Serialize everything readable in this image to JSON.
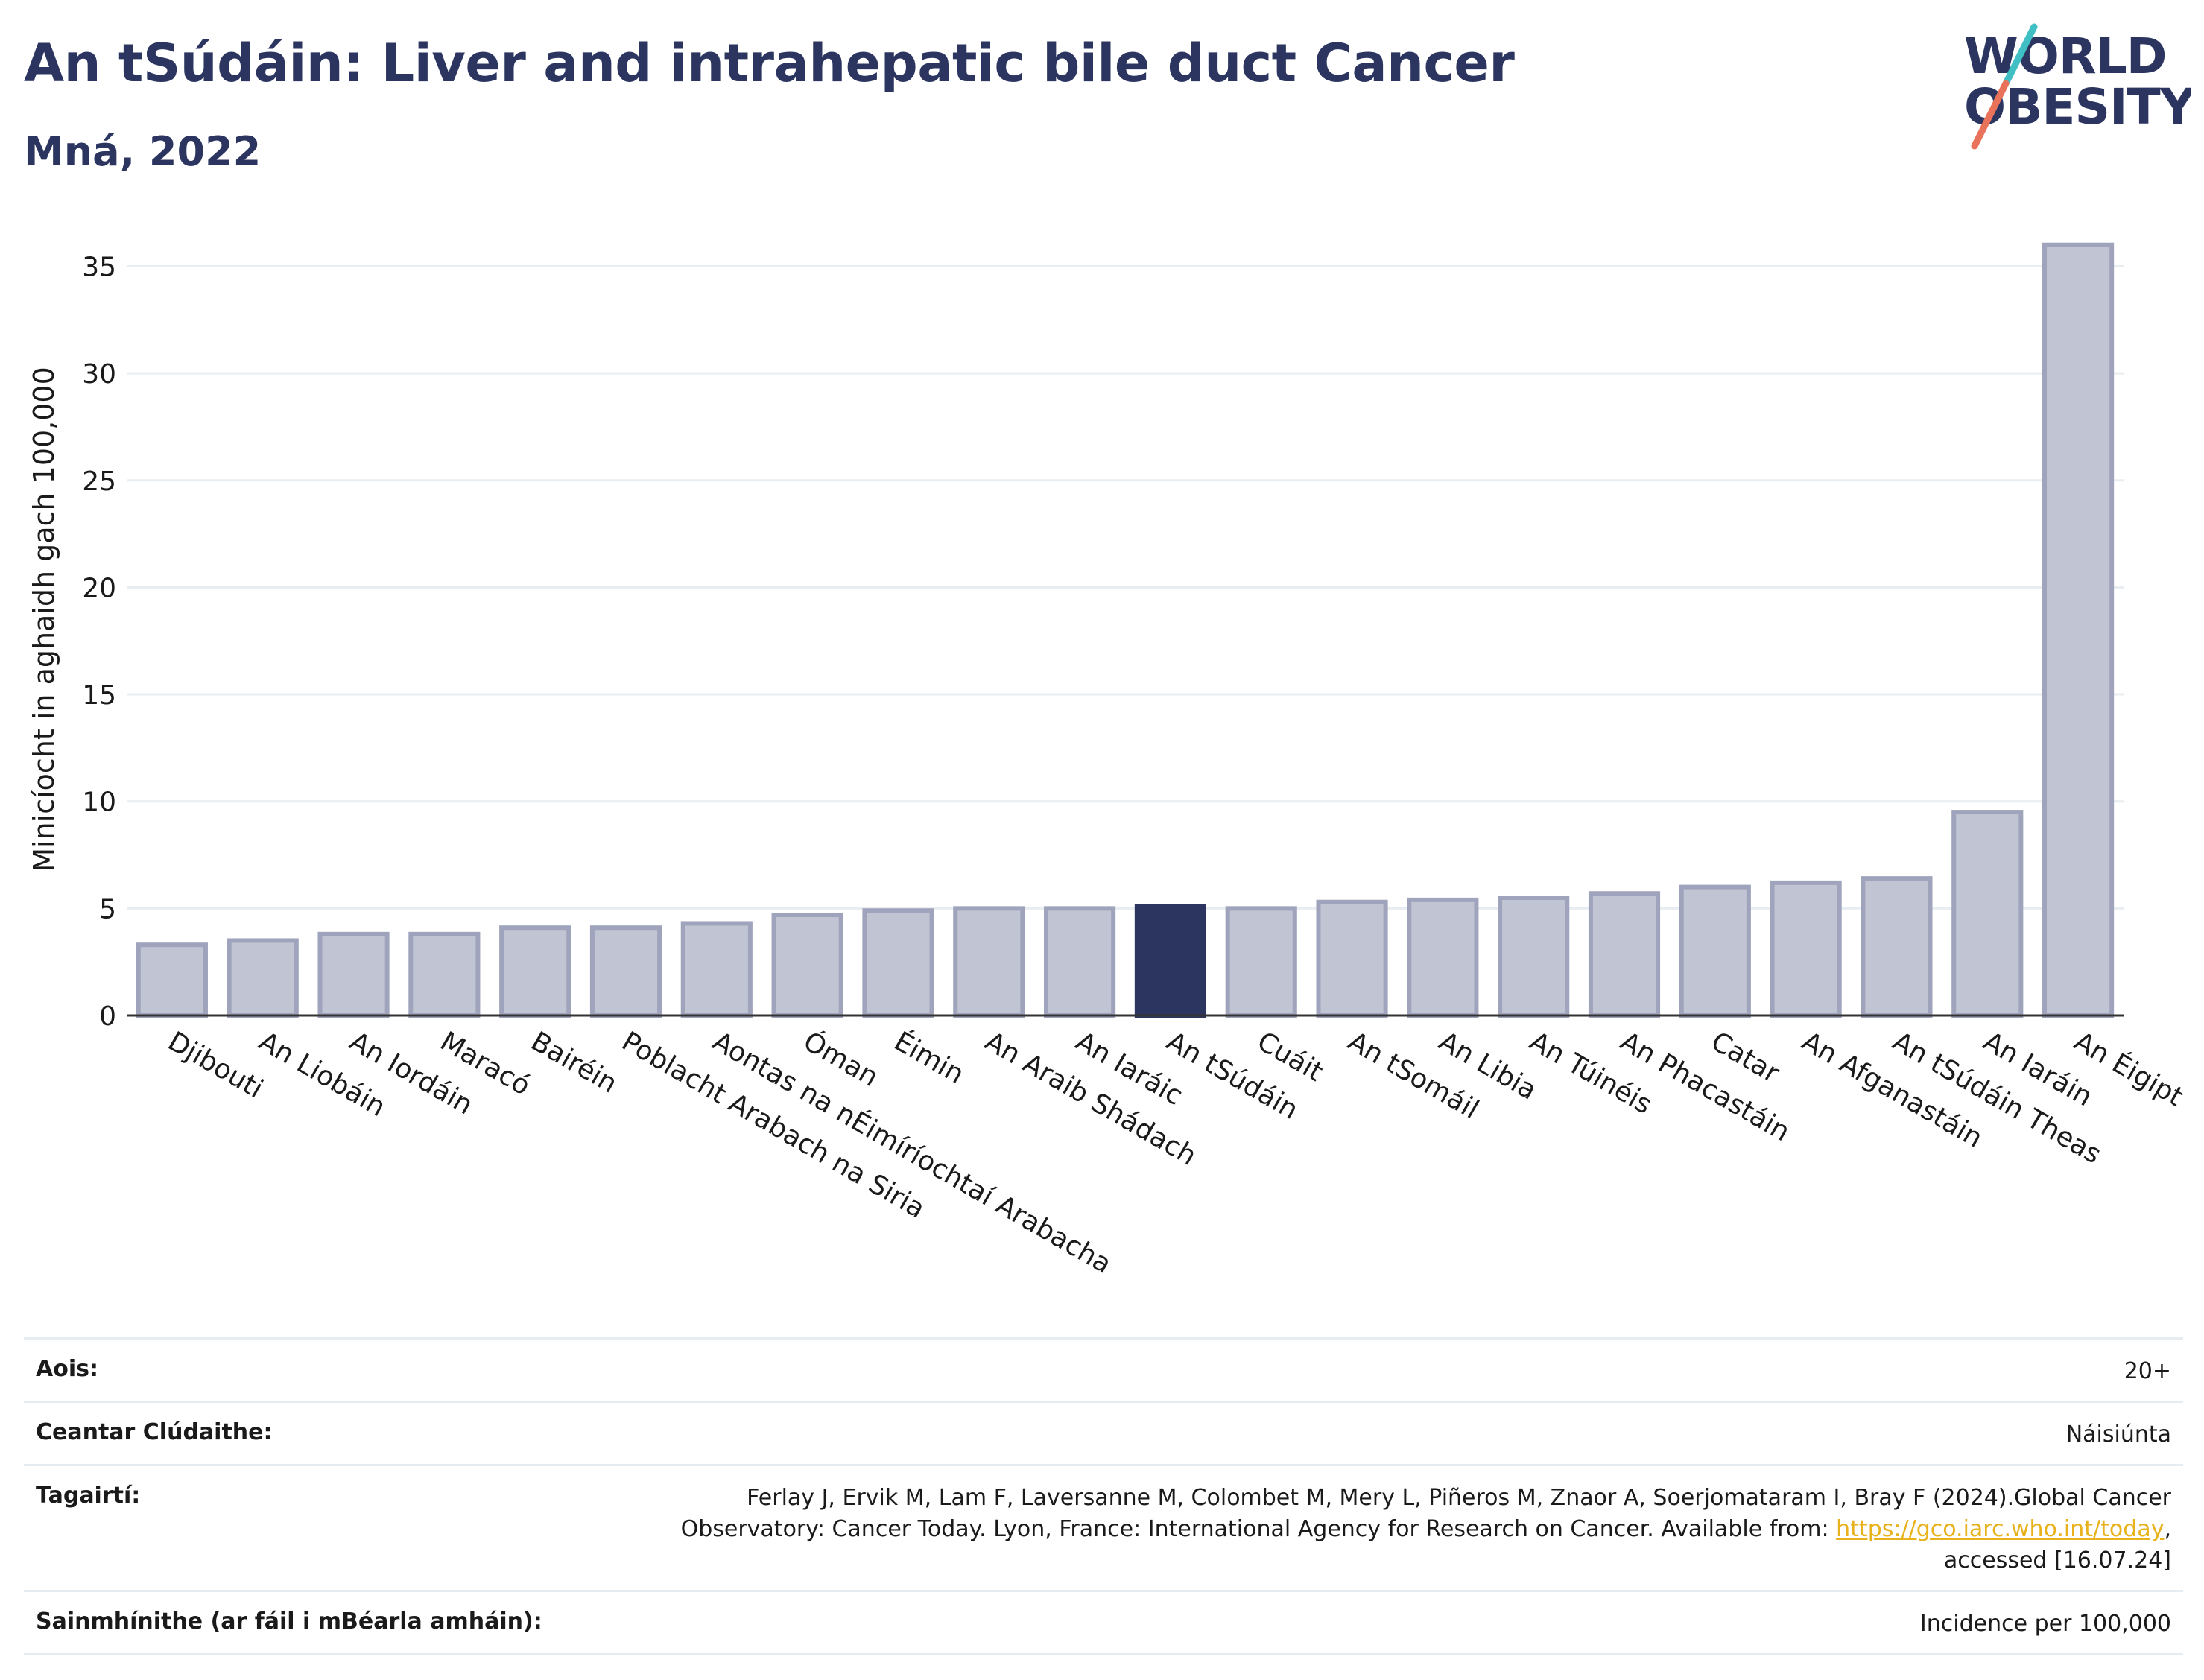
{
  "header": {
    "title": "An tSúdáin: Liver and intrahepatic bile duct Cancer",
    "subtitle": "Mná, 2022"
  },
  "logo": {
    "line1": "WORLD",
    "line2": "OBESITY",
    "slash_colors": [
      "#3fbfc4",
      "#e8735a"
    ]
  },
  "colors": {
    "bar": "#c1c4d2",
    "bar_border": "#9fa4bc",
    "highlight": "#2b3560",
    "grid": "#e8edf2",
    "axis": "#333333"
  },
  "chart_data": {
    "type": "bar",
    "ylabel": "Minicíocht in aghaidh gach 100,000",
    "xlabel": "",
    "ylim": [
      0,
      37
    ],
    "yticks": [
      0,
      5,
      10,
      15,
      20,
      25,
      30,
      35
    ],
    "grid": true,
    "highlight": "An tSúdáin",
    "categories": [
      "Djibouti",
      "An Liobáin",
      "An Iordáin",
      "Maracó",
      "Bairéin",
      "Poblacht Arabach na Siria",
      "Aontas na nÉimíríochtaí Arabacha",
      "Óman",
      "Éimin",
      "An Araib Shádach",
      "An Iaráic",
      "An tSúdáin",
      "Cuáit",
      "An tSomáil",
      "An Libia",
      "An Túinéis",
      "An Phacastáin",
      "Catar",
      "An Afganastáin",
      "An tSúdáin Theas",
      "An Iaráin",
      "An Éigipt"
    ],
    "values": [
      3.3,
      3.5,
      3.8,
      3.8,
      4.1,
      4.1,
      4.3,
      4.7,
      4.9,
      5.0,
      5.0,
      5.1,
      5.0,
      5.3,
      5.4,
      5.5,
      5.7,
      6.0,
      6.2,
      6.4,
      9.5,
      36.0
    ]
  },
  "info": {
    "age_label": "Aois:",
    "age_value": "20+",
    "coverage_label": "Ceantar Clúdaithe:",
    "coverage_value": "Náisiúnta",
    "refs_label": "Tagairtí:",
    "refs_line1": "Ferlay J, Ervik M, Lam F, Laversanne M, Colombet M, Mery L, Piñeros M, Znaor A, Soerjomataram I, Bray F (2024).Global Cancer",
    "refs_line2_pre": "Observatory: Cancer Today. Lyon, France: International Agency for Research on Cancer. Available from: ",
    "refs_link": "https://gco.iarc.who.int/today",
    "refs_line2_post": ",",
    "refs_line3": "accessed [16.07.24]",
    "definitions_label": "Sainmhínithe (ar fáil i mBéarla amháin):",
    "definitions_value": "Incidence per 100,000"
  }
}
